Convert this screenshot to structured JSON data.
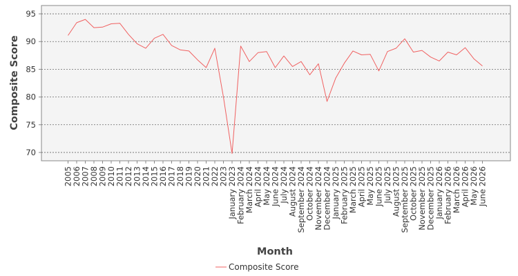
{
  "chart_data": {
    "type": "line",
    "title": "",
    "xlabel": "Month",
    "ylabel": "Composite Score",
    "ylim": [
      68.5,
      96.5
    ],
    "yticks": [
      70,
      75,
      80,
      85,
      90,
      95
    ],
    "grid": true,
    "legend_position": "bottom-center",
    "categories": [
      "2005",
      "2006",
      "2007",
      "2008",
      "2009",
      "2010",
      "2011",
      "2012",
      "2013",
      "2014",
      "2015",
      "2016",
      "2017",
      "2018",
      "2019",
      "2020",
      "2021",
      "2022",
      "2023",
      "January 2023",
      "February 2024",
      "March 2024",
      "April 2024",
      "May 2024",
      "June 2024",
      "July 2024",
      "August 2024",
      "September 2024",
      "October 2024",
      "November 2024",
      "December 2024",
      "January 2025",
      "February 2025",
      "March 2025",
      "April 2025",
      "May 2025",
      "June 2025",
      "July 2025",
      "August 2025",
      "September 2025",
      "October 2025",
      "November 2025",
      "December 2025",
      "January 2026",
      "February 2026",
      "March 2026",
      "April 2026",
      "May 2026",
      "June 2026"
    ],
    "series": [
      {
        "name": "Composite Score",
        "color": "#f06060",
        "values": [
          91.1,
          93.4,
          94.0,
          92.5,
          92.6,
          93.2,
          93.3,
          91.3,
          89.6,
          88.8,
          90.6,
          91.3,
          89.3,
          88.5,
          88.3,
          86.7,
          85.3,
          88.8,
          80.0,
          69.8,
          89.2,
          86.4,
          88.0,
          88.2,
          85.3,
          87.4,
          85.5,
          86.4,
          84.0,
          86.0,
          79.2,
          83.4,
          86.1,
          88.3,
          87.6,
          87.7,
          84.7,
          88.2,
          88.8,
          90.5,
          88.1,
          88.4,
          87.2,
          86.5,
          88.1,
          87.6,
          88.9,
          86.9,
          85.6
        ]
      }
    ]
  }
}
